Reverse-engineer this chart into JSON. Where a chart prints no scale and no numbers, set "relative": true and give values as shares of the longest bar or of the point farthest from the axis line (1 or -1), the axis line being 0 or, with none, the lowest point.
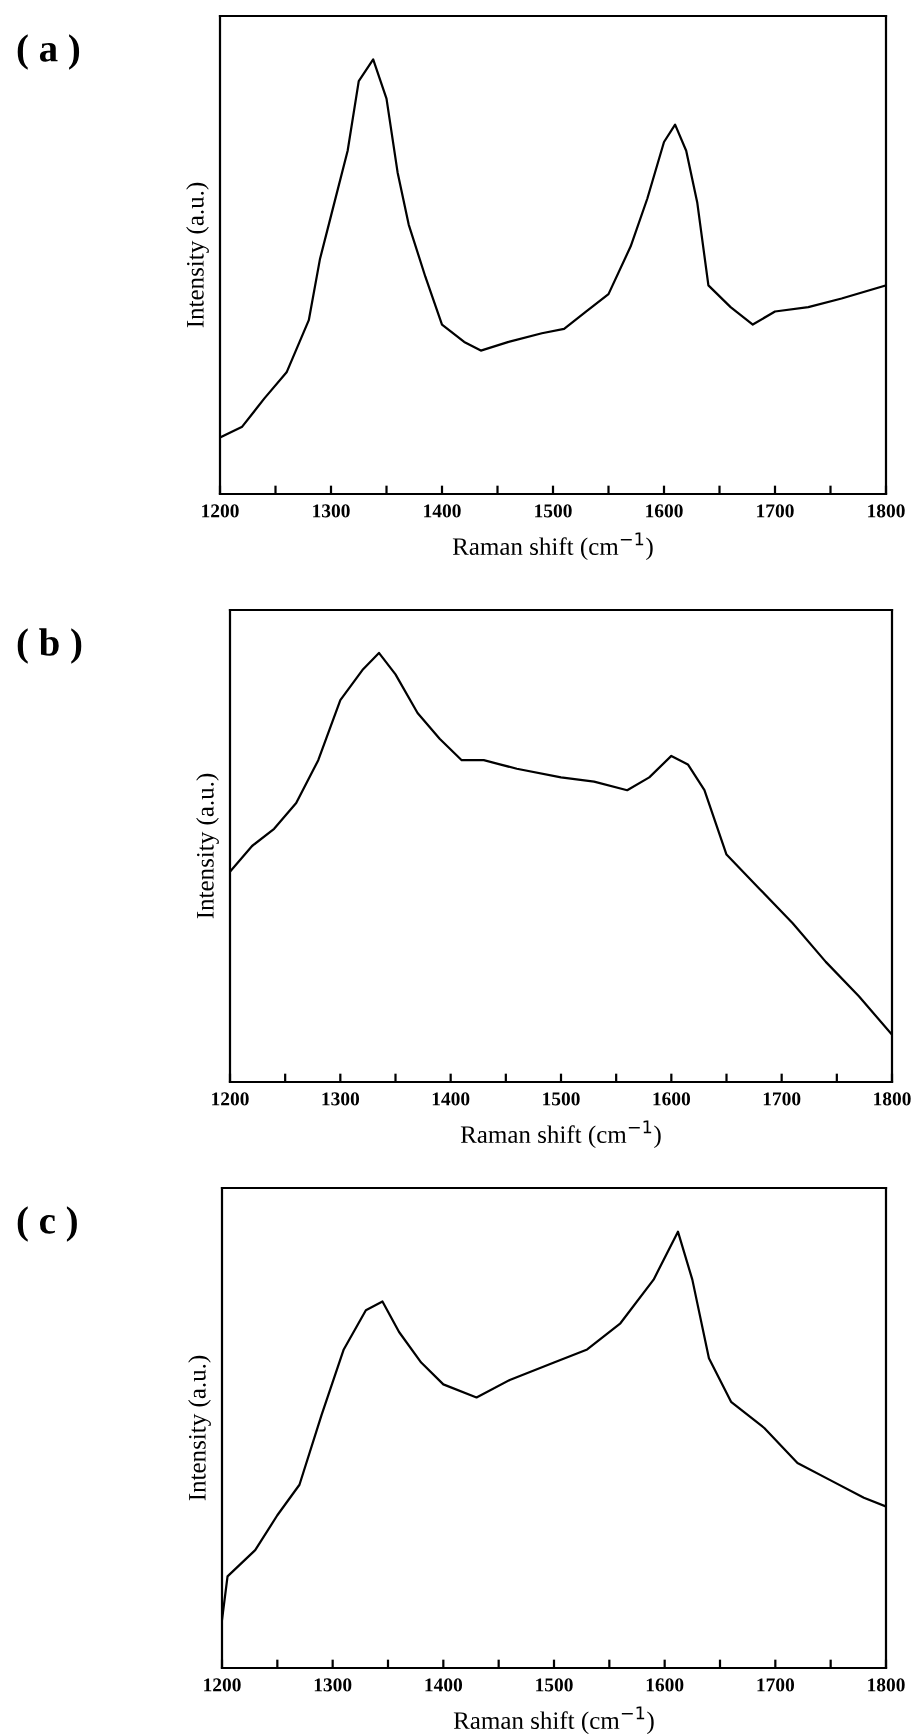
{
  "chart_data": [
    {
      "type": "line",
      "title": "( a )",
      "xlabel": "Raman shift (cm$^{−1}$)",
      "ylabel": "Intensity (a.u.)",
      "relative": true,
      "tick_labels": "x",
      "xlim": [
        1200,
        1800
      ],
      "xticks": [
        1200,
        {
          "value": 1250,
          "label": null
        },
        1300,
        {
          "value": 1350,
          "label": null
        },
        1400,
        {
          "value": 1450,
          "label": null
        },
        1500,
        {
          "value": 1550,
          "label": null
        },
        1600,
        {
          "value": 1650,
          "label": null
        },
        1700,
        {
          "value": 1750,
          "label": null
        },
        1800
      ],
      "series": [
        {
          "color": "#000000",
          "x": [
            1200,
            1220,
            1240,
            1260,
            1280,
            1290,
            1300,
            1315,
            1325,
            1338,
            1350,
            1360,
            1370,
            1385,
            1400,
            1420,
            1435,
            1460,
            1490,
            1510,
            1530,
            1550,
            1570,
            1585,
            1600,
            1610,
            1620,
            1630,
            1640,
            1660,
            1680,
            1700,
            1730,
            1760,
            1800
          ],
          "values": [
            0.13,
            0.155,
            0.22,
            0.28,
            0.4,
            0.54,
            0.64,
            0.79,
            0.95,
            1.0,
            0.91,
            0.74,
            0.62,
            0.5,
            0.39,
            0.35,
            0.33,
            0.35,
            0.37,
            0.38,
            0.42,
            0.46,
            0.57,
            0.68,
            0.81,
            0.85,
            0.79,
            0.67,
            0.48,
            0.43,
            0.39,
            0.42,
            0.43,
            0.45,
            0.48
          ]
        }
      ]
    },
    {
      "type": "line",
      "title": "( b )",
      "xlabel": "Raman shift (cm$^{−1}$)",
      "ylabel": "Intensity (a.u.)",
      "relative": true,
      "tick_labels": "x",
      "xlim": [
        1200,
        1800
      ],
      "xticks": [
        1200,
        {
          "value": 1250,
          "label": null
        },
        1300,
        {
          "value": 1350,
          "label": null
        },
        1400,
        {
          "value": 1450,
          "label": null
        },
        1500,
        {
          "value": 1550,
          "label": null
        },
        1600,
        {
          "value": 1650,
          "label": null
        },
        1700,
        {
          "value": 1750,
          "label": null
        },
        1800
      ],
      "series": [
        {
          "color": "#000000",
          "x": [
            1200,
            1220,
            1240,
            1260,
            1280,
            1300,
            1320,
            1335,
            1350,
            1370,
            1390,
            1410,
            1430,
            1460,
            1500,
            1530,
            1560,
            1580,
            1600,
            1615,
            1630,
            1650,
            1680,
            1710,
            1740,
            1770,
            1800
          ],
          "values": [
            0.49,
            0.55,
            0.59,
            0.65,
            0.75,
            0.89,
            0.96,
            1.0,
            0.95,
            0.86,
            0.8,
            0.75,
            0.75,
            0.73,
            0.71,
            0.7,
            0.68,
            0.71,
            0.76,
            0.74,
            0.68,
            0.53,
            0.45,
            0.37,
            0.28,
            0.2,
            0.11
          ]
        }
      ]
    },
    {
      "type": "line",
      "title": "( c )",
      "xlabel": "Raman shift (cm$^{−1}$)",
      "ylabel": "Intensity (a.u.)",
      "relative": true,
      "tick_labels": "x",
      "xlim": [
        1200,
        1800
      ],
      "xticks": [
        1200,
        {
          "value": 1250,
          "label": null
        },
        1300,
        {
          "value": 1350,
          "label": null
        },
        1400,
        {
          "value": 1450,
          "label": null
        },
        1500,
        {
          "value": 1550,
          "label": null
        },
        1600,
        {
          "value": 1650,
          "label": null
        },
        1700,
        {
          "value": 1750,
          "label": null
        },
        1800
      ],
      "series": [
        {
          "color": "#000000",
          "x": [
            1200,
            1205,
            1230,
            1250,
            1270,
            1290,
            1310,
            1330,
            1345,
            1360,
            1380,
            1400,
            1430,
            1460,
            1500,
            1530,
            1560,
            1590,
            1612,
            1625,
            1640,
            1660,
            1690,
            1720,
            1750,
            1780,
            1800
          ],
          "values": [
            0.11,
            0.21,
            0.27,
            0.35,
            0.42,
            0.58,
            0.73,
            0.82,
            0.84,
            0.77,
            0.7,
            0.65,
            0.62,
            0.66,
            0.7,
            0.73,
            0.79,
            0.89,
            1.0,
            0.89,
            0.71,
            0.61,
            0.55,
            0.47,
            0.43,
            0.39,
            0.37
          ]
        }
      ]
    }
  ]
}
